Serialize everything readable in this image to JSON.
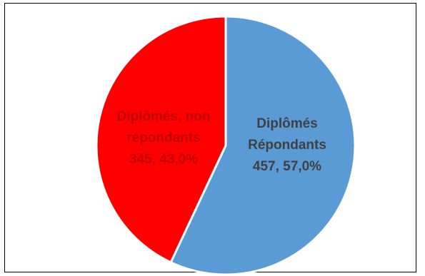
{
  "chart_data": {
    "type": "pie",
    "start_angle_deg": 0,
    "direction": "clockwise",
    "slices": [
      {
        "label_lines": [
          "Diplômés",
          "Répondants"
        ],
        "value_text": "457,  57,0%",
        "value": 457,
        "percent": 57.0,
        "color": "#5b9bd5",
        "label_color": "#404040"
      },
      {
        "label_lines": [
          "Diplômés, non",
          "répondants"
        ],
        "value_text": "345,  43,0%",
        "value": 345,
        "percent": 43.0,
        "color": "#ff0000",
        "label_color": "#c00000"
      }
    ],
    "slice_border_color": "#ffffff"
  }
}
